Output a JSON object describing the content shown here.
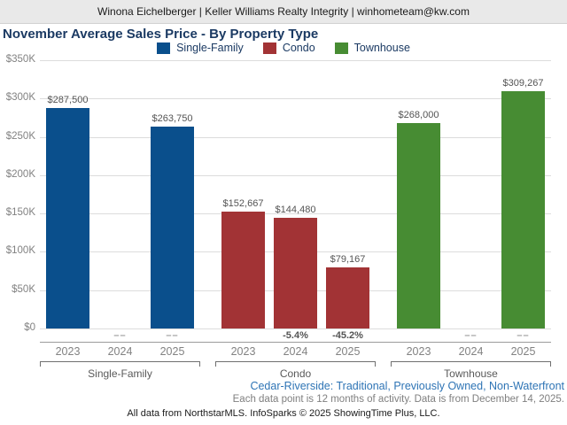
{
  "header": {
    "text": "Winona Eichelberger | Keller Williams Realty Integrity | winhometeam@kw.com"
  },
  "title": "November Average Sales Price - By Property Type",
  "legend": [
    {
      "label": "Single-Family",
      "color": "#0a4f8c"
    },
    {
      "label": "Condo",
      "color": "#a23335"
    },
    {
      "label": "Townhouse",
      "color": "#478c33"
    }
  ],
  "chart_data": {
    "type": "bar",
    "title": "November Average Sales Price - By Property Type",
    "categories": [
      "2023",
      "2024",
      "2025"
    ],
    "xlabel": "",
    "ylabel": "",
    "ylim": [
      0,
      350000
    ],
    "ytick_labels": [
      "$0",
      "$50K",
      "$100K",
      "$150K",
      "$200K",
      "$250K",
      "$300K",
      "$350K"
    ],
    "grid": true,
    "legend_position": "top",
    "series": [
      {
        "name": "Single-Family",
        "color": "#0a4f8c",
        "values": [
          287500,
          null,
          263750
        ],
        "value_labels": [
          "$287,500",
          null,
          "$263,750"
        ],
        "pct_change": [
          null,
          "––",
          "––"
        ]
      },
      {
        "name": "Condo",
        "color": "#a23335",
        "values": [
          152667,
          144480,
          79167
        ],
        "value_labels": [
          "$152,667",
          "$144,480",
          "$79,167"
        ],
        "pct_change": [
          null,
          "-5.4%",
          "-45.2%"
        ]
      },
      {
        "name": "Townhouse",
        "color": "#478c33",
        "values": [
          268000,
          null,
          309267
        ],
        "value_labels": [
          "$268,000",
          null,
          "$309,267"
        ],
        "pct_change": [
          null,
          "––",
          "––"
        ]
      }
    ]
  },
  "footer": {
    "filter_text": "Cedar-Riverside: Traditional, Previously Owned, Non-Waterfront",
    "data_note": "Each data point is 12 months of activity. Data is from December 14, 2025.",
    "attribution": "All data from NorthstarMLS. InfoSparks © 2025 ShowingTime Plus, LLC."
  }
}
